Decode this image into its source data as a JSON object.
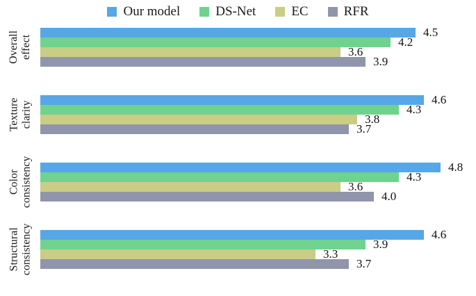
{
  "chart_data": {
    "type": "bar",
    "orientation": "horizontal",
    "title": "",
    "xlabel": "",
    "ylabel": "",
    "xlim": [
      0,
      5
    ],
    "grid": false,
    "legend_position": "top",
    "value_labels": true,
    "categories": [
      "Overall effect",
      "Texture clarity",
      "Color consistency",
      "Structural consistency"
    ],
    "category_label_lines": [
      [
        "Overall",
        "effect"
      ],
      [
        "Texture",
        "clarity"
      ],
      [
        "Color",
        "consistency"
      ],
      [
        "Structural",
        "consistency"
      ]
    ],
    "series": [
      {
        "name": "Our model",
        "color": "#57a7e6",
        "values": [
          4.5,
          4.6,
          4.8,
          4.6
        ]
      },
      {
        "name": "DS-Net",
        "color": "#6fd38f",
        "values": [
          4.2,
          4.3,
          4.3,
          3.9
        ]
      },
      {
        "name": "EC",
        "color": "#c9cd86",
        "values": [
          3.6,
          3.8,
          3.6,
          3.3
        ]
      },
      {
        "name": "RFR",
        "color": "#9195ab",
        "values": [
          3.9,
          3.7,
          4.0,
          3.7
        ]
      }
    ]
  },
  "colors": {
    "background": "#ffffff",
    "text": "#1a1a1a",
    "our_model": "#57a7e6",
    "ds_net": "#6fd38f",
    "ec": "#c9cd86",
    "rfr": "#9195ab"
  }
}
